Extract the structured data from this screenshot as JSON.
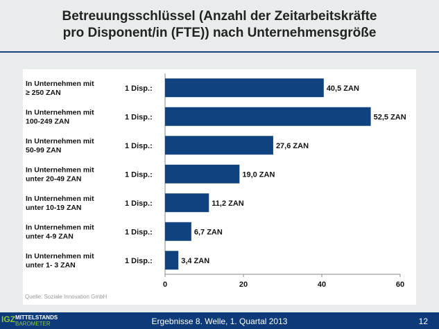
{
  "chart_data": {
    "type": "bar",
    "orientation": "horizontal",
    "title": "Betreuungsschlüssel (Anzahl der Zeitarbeitskräfte pro Disponent/in (FTE)) nach Unternehmensgröße",
    "title_lines": [
      "Betreuungsschlüssel (Anzahl der Zeitarbeitskräfte",
      "pro Disponent/in (FTE)) nach Unternehmensgröße"
    ],
    "categories": [
      [
        "In Unternehmen mit",
        "≥ 250 ZAN"
      ],
      [
        "In Unternehmen mit",
        "100-249  ZAN"
      ],
      [
        "In Unternehmen mit",
        "50-99 ZAN"
      ],
      [
        "In Unternehmen mit",
        "unter 20-49 ZAN"
      ],
      [
        "In Unternehmen mit",
        "unter 10-19 ZAN"
      ],
      [
        "In Unternehmen mit",
        "unter 4-9 ZAN"
      ],
      [
        "In Unternehmen mit",
        "unter 1- 3 ZAN"
      ]
    ],
    "prefix_label": "1 Disp.:",
    "values": [
      40.5,
      52.5,
      27.6,
      19.0,
      11.2,
      6.7,
      3.4
    ],
    "data_labels": [
      "40,5 ZAN",
      "52,5 ZAN",
      "27,6 ZAN",
      "19,0 ZAN",
      "11,2 ZAN",
      "6,7 ZAN",
      "3,4 ZAN"
    ],
    "xlim": [
      0,
      60
    ],
    "xticks": [
      "0",
      "20",
      "40",
      "60"
    ],
    "grid": false,
    "bar_color": "#10427f"
  },
  "source": "Quelle: Soziale Innovation GmbH",
  "footer": {
    "logo_igz": "IGZ",
    "logo_line1": "MITTELSTANDS",
    "logo_line2": "BAROMETER",
    "text": "Ergebnisse 8. Welle, 1. Quartal 2013",
    "page": "12"
  }
}
